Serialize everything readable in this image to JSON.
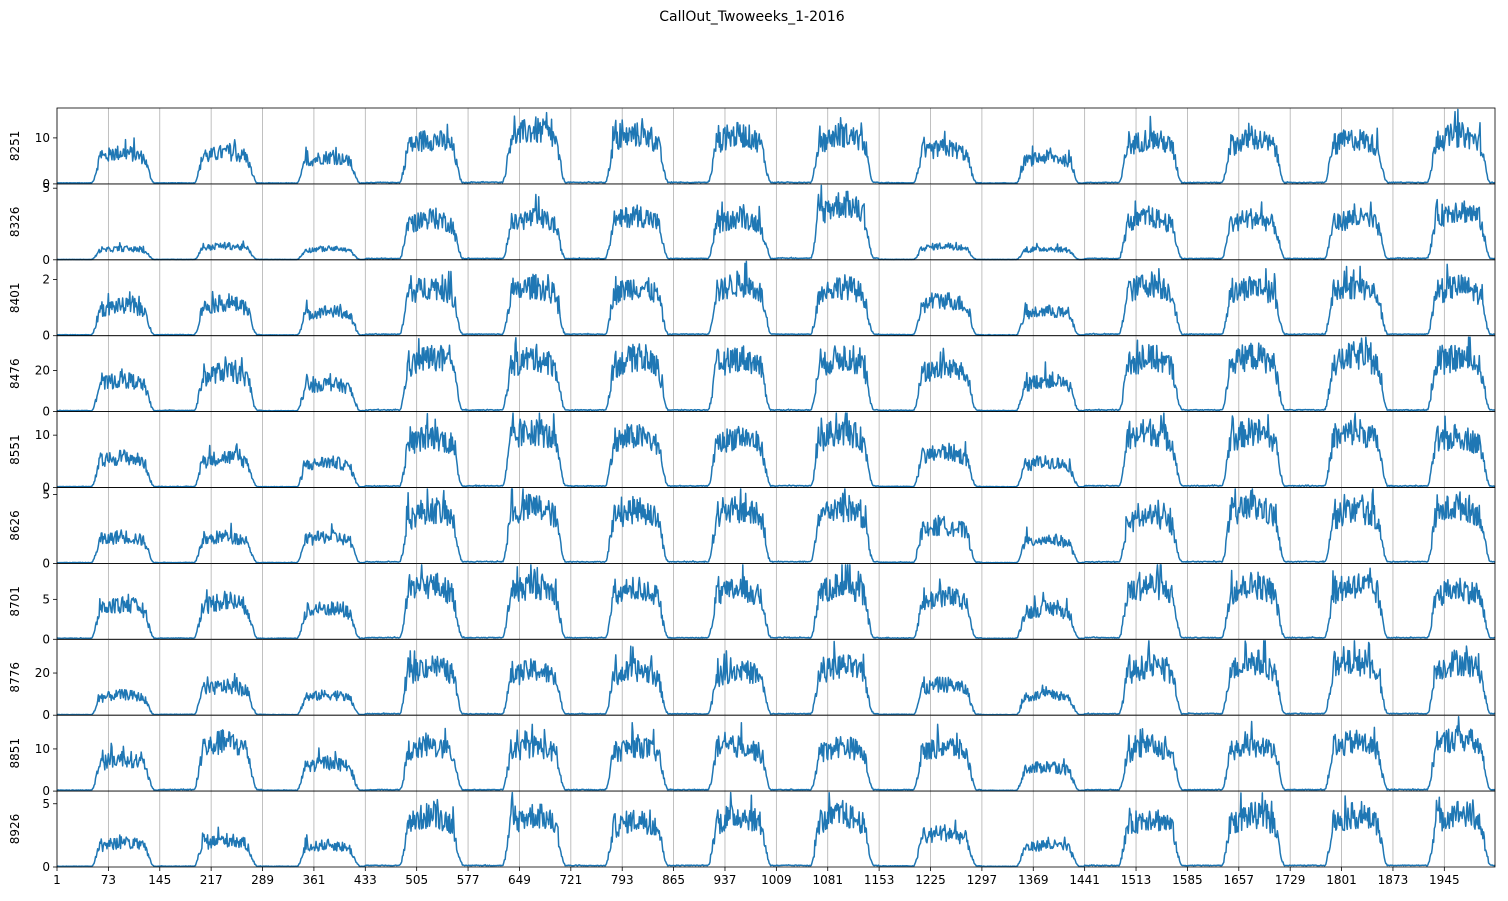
{
  "chart_data": {
    "type": "line",
    "title": "CallOut_Twoweeks_1-2016",
    "x_range": [
      1,
      2016
    ],
    "x_ticks": [
      1,
      73,
      145,
      217,
      289,
      361,
      433,
      505,
      577,
      649,
      721,
      793,
      865,
      937,
      1009,
      1081,
      1153,
      1225,
      1297,
      1369,
      1441,
      1513,
      1585,
      1657,
      1729,
      1801,
      1873,
      1945
    ],
    "grid": "vertical",
    "line_color": "#1f77b4",
    "series": [
      {
        "name": "8251",
        "y_ticks": [
          0,
          10
        ],
        "ylim": [
          0,
          16.5
        ],
        "day_peaks": [
          7,
          7,
          6,
          10,
          12,
          11,
          11,
          11,
          8,
          6,
          10,
          10,
          10,
          11
        ]
      },
      {
        "name": "8326",
        "y_ticks": [
          0,
          5
        ],
        "ylim": [
          0,
          5.3
        ],
        "day_peaks": [
          0.8,
          1.0,
          0.8,
          3.0,
          3.0,
          3.2,
          3.0,
          4.0,
          1.0,
          0.8,
          3.0,
          3.0,
          3.0,
          3.6
        ]
      },
      {
        "name": "8401",
        "y_ticks": [
          0,
          2
        ],
        "ylim": [
          0,
          2.7
        ],
        "day_peaks": [
          1.1,
          1.2,
          0.9,
          1.8,
          1.8,
          1.8,
          1.9,
          1.8,
          1.3,
          0.9,
          1.9,
          1.8,
          1.8,
          1.8
        ]
      },
      {
        "name": "8476",
        "y_ticks": [
          0,
          20
        ],
        "ylim": [
          0,
          37
        ],
        "day_peaks": [
          16,
          20,
          14,
          27,
          27,
          27,
          27,
          27,
          22,
          16,
          27,
          28,
          28,
          27
        ]
      },
      {
        "name": "8551",
        "y_ticks": [
          0,
          10
        ],
        "ylim": [
          0,
          14.5
        ],
        "day_peaks": [
          6,
          6,
          5,
          10,
          11,
          10,
          10,
          11,
          7,
          5,
          11,
          11,
          11,
          10
        ]
      },
      {
        "name": "8626",
        "y_ticks": [
          0,
          5
        ],
        "ylim": [
          0,
          5.5
        ],
        "day_peaks": [
          2.0,
          2.0,
          2.0,
          4.0,
          4.2,
          4.0,
          4.0,
          4.2,
          2.8,
          1.8,
          3.5,
          4.2,
          4.0,
          4.3
        ]
      },
      {
        "name": "8701",
        "y_ticks": [
          0,
          5
        ],
        "ylim": [
          0,
          9.5
        ],
        "day_peaks": [
          4.5,
          5,
          4,
          7,
          7,
          6.5,
          6.5,
          7,
          5.5,
          4,
          7,
          7,
          7,
          6.5
        ]
      },
      {
        "name": "8776",
        "y_ticks": [
          0,
          20
        ],
        "ylim": [
          0,
          36
        ],
        "day_peaks": [
          10,
          14,
          10,
          24,
          22,
          22,
          22,
          24,
          15,
          10,
          24,
          26,
          26,
          26
        ]
      },
      {
        "name": "8851",
        "y_ticks": [
          0,
          10
        ],
        "ylim": [
          0,
          18
        ],
        "day_peaks": [
          8,
          12,
          7,
          11,
          11,
          11,
          11,
          11,
          11,
          6,
          11,
          11,
          12,
          13
        ]
      },
      {
        "name": "8926",
        "y_ticks": [
          0,
          5
        ],
        "ylim": [
          0,
          6
        ],
        "day_peaks": [
          2.0,
          2.2,
          1.8,
          4.2,
          4.2,
          3.8,
          4.2,
          4.2,
          2.8,
          1.8,
          4.0,
          4.2,
          4.2,
          4.4
        ]
      }
    ]
  }
}
